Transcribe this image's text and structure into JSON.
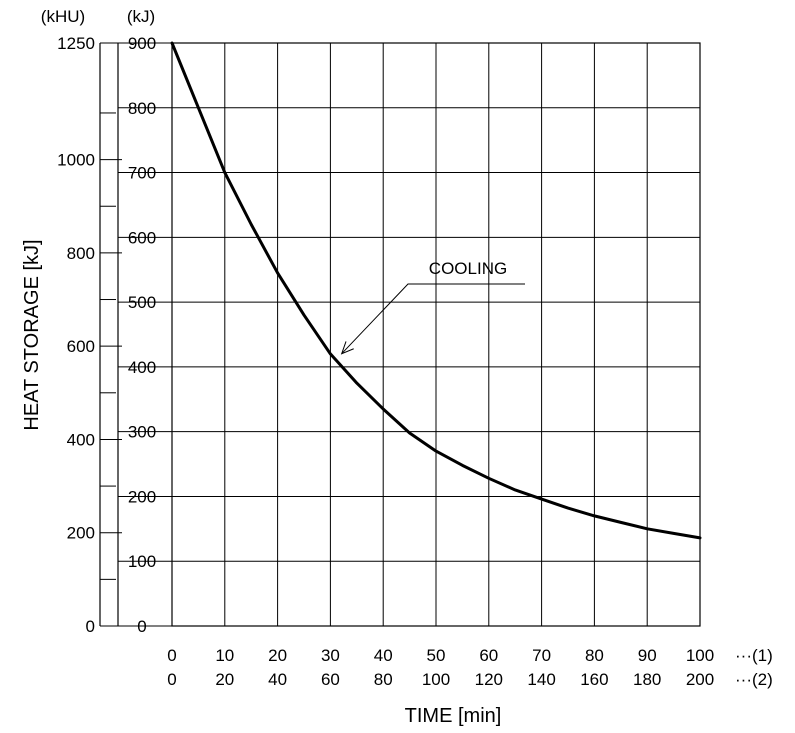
{
  "chart_data": {
    "type": "line",
    "title": "",
    "xlabel": "TIME  [min]",
    "ylabel": "HEAT STORAGE  [kJ]",
    "grid": true,
    "xlim": [
      0,
      100
    ],
    "ylim": [
      0,
      900
    ],
    "x_ticks_row1": [
      "0",
      "10",
      "20",
      "30",
      "40",
      "50",
      "60",
      "70",
      "80",
      "90",
      "100"
    ],
    "x_ticks_row1_suffix": "···(1)",
    "x_ticks_row2": [
      "0",
      "20",
      "40",
      "60",
      "80",
      "100",
      "120",
      "140",
      "160",
      "180",
      "200"
    ],
    "x_ticks_row2_suffix": "···(2)",
    "y_unit_kj": "(kJ)",
    "y_ticks_kj": [
      "0",
      "100",
      "200",
      "300",
      "400",
      "500",
      "600",
      "700",
      "800",
      "900"
    ],
    "y_unit_khu": "(kHU)",
    "y_ticks_khu": [
      "0",
      "200",
      "400",
      "600",
      "800",
      "1000",
      "1250"
    ],
    "y_khu_major_values": [
      0,
      200,
      400,
      600,
      800,
      1000,
      1250
    ],
    "y_khu_minor_values": [
      100,
      300,
      500,
      700,
      900,
      1100
    ],
    "khu_max": 1250,
    "annotation": {
      "text": "COOLING",
      "x": 31,
      "y": 425
    },
    "series": [
      {
        "x": [
          0,
          5,
          10,
          15,
          20,
          25,
          30,
          35,
          40,
          45,
          50,
          55,
          60,
          65,
          70,
          75,
          80,
          85,
          90,
          95,
          100
        ],
        "values": [
          900,
          800,
          700,
          620,
          545,
          480,
          420,
          375,
          335,
          298,
          270,
          248,
          228,
          210,
          196,
          182,
          170,
          160,
          150,
          143,
          136
        ]
      }
    ]
  }
}
